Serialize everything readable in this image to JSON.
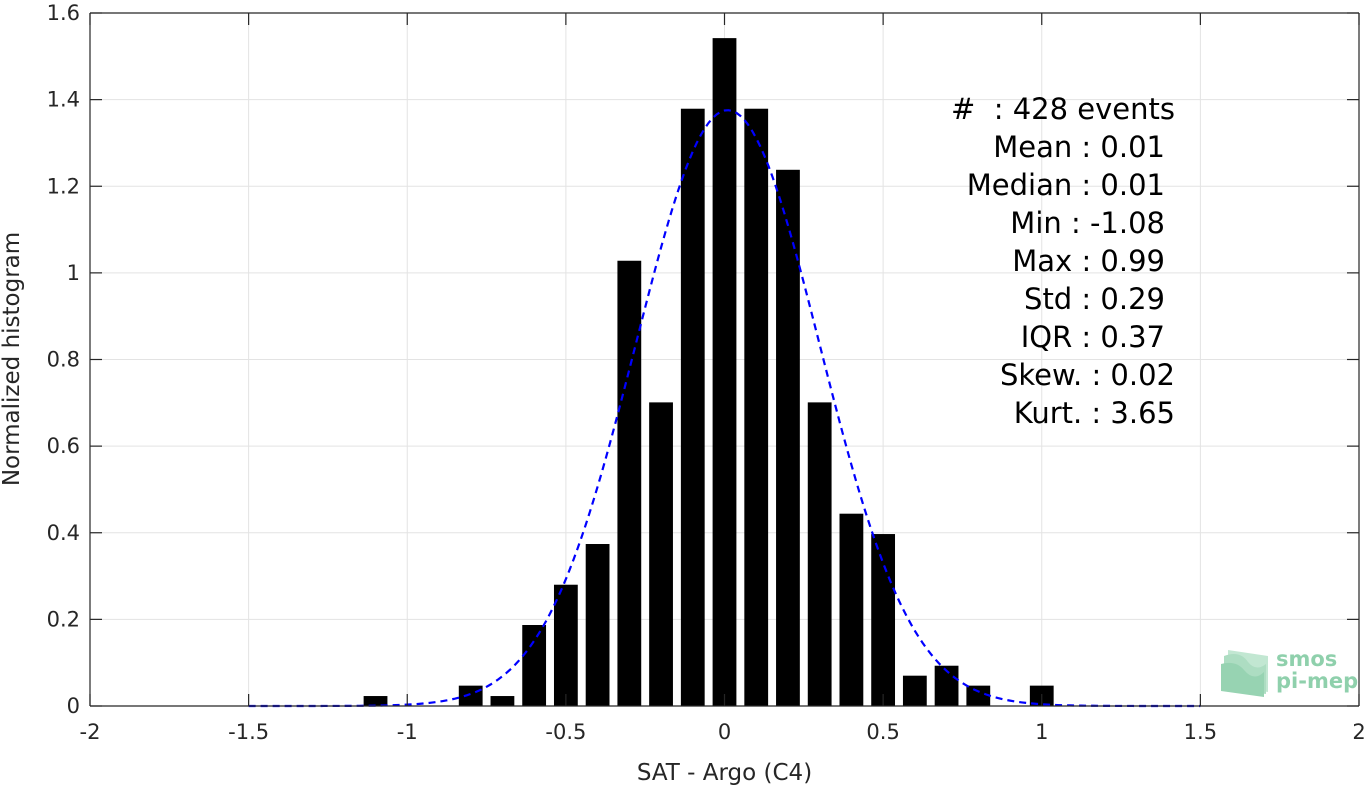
{
  "chart_data": {
    "type": "bar",
    "xlabel": "SAT - Argo (C4)",
    "ylabel": "Normalized histogram",
    "xlim": [
      -2,
      2
    ],
    "ylim": [
      0,
      1.6
    ],
    "x_ticks": [
      -2,
      -1.5,
      -1,
      -0.5,
      0,
      0.5,
      1,
      1.5,
      2
    ],
    "x_tick_labels": [
      "-2",
      "-1.5",
      "-1",
      "-0.5",
      "0",
      "0.5",
      "1",
      "1.5",
      "2"
    ],
    "y_ticks": [
      0,
      0.2,
      0.4,
      0.6,
      0.8,
      1,
      1.2,
      1.4,
      1.6
    ],
    "y_tick_labels": [
      "0",
      "0.2",
      "0.4",
      "0.6",
      "0.8",
      "1",
      "1.2",
      "1.4",
      "1.6"
    ],
    "grid": true,
    "bar_color": "#000000",
    "bin_width": 0.1,
    "bar_width": 0.075,
    "bars": [
      {
        "x": -1.1,
        "y": 0.023
      },
      {
        "x": -0.8,
        "y": 0.047
      },
      {
        "x": -0.7,
        "y": 0.023
      },
      {
        "x": -0.6,
        "y": 0.187
      },
      {
        "x": -0.5,
        "y": 0.28
      },
      {
        "x": -0.4,
        "y": 0.374
      },
      {
        "x": -0.3,
        "y": 1.028
      },
      {
        "x": -0.2,
        "y": 0.701
      },
      {
        "x": -0.1,
        "y": 1.379
      },
      {
        "x": 0.0,
        "y": 1.542
      },
      {
        "x": 0.1,
        "y": 1.379
      },
      {
        "x": 0.2,
        "y": 1.238
      },
      {
        "x": 0.3,
        "y": 0.701
      },
      {
        "x": 0.4,
        "y": 0.444
      },
      {
        "x": 0.5,
        "y": 0.397
      },
      {
        "x": 0.6,
        "y": 0.07
      },
      {
        "x": 0.7,
        "y": 0.093
      },
      {
        "x": 0.8,
        "y": 0.047
      },
      {
        "x": 1.0,
        "y": 0.047
      }
    ],
    "fit_curve": {
      "style": "dashed",
      "color": "#0000ff",
      "mean": 0.01,
      "std": 0.29,
      "x_range": [
        -1.5,
        1.5
      ]
    },
    "annotations": [
      "#  : 428 events",
      "Mean : 0.01",
      "Median : 0.01",
      "Min : -1.08",
      "Max : 0.99",
      "Std : 0.29",
      "IQR : 0.37",
      "Skew. : 0.02",
      "Kurt. : 3.65"
    ]
  },
  "logo": {
    "line1": "smos",
    "line2": "pi-mep",
    "color": "#8fd0ac"
  }
}
